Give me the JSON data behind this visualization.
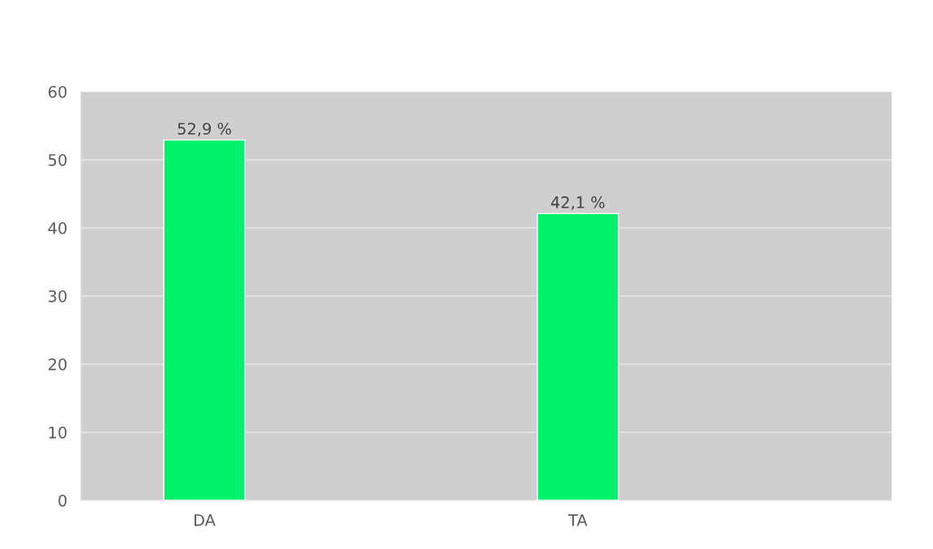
{
  "chart_data": {
    "type": "bar",
    "categories": [
      "DA",
      "TA"
    ],
    "values": [
      52.9,
      42.1
    ],
    "color": "#00f26b",
    "value_labels": [
      "52,9 %",
      "42,1 %"
    ],
    "ylim": [
      0,
      60
    ],
    "yticks": [
      0,
      10,
      20,
      30,
      40,
      50,
      60
    ],
    "grid": "y"
  }
}
